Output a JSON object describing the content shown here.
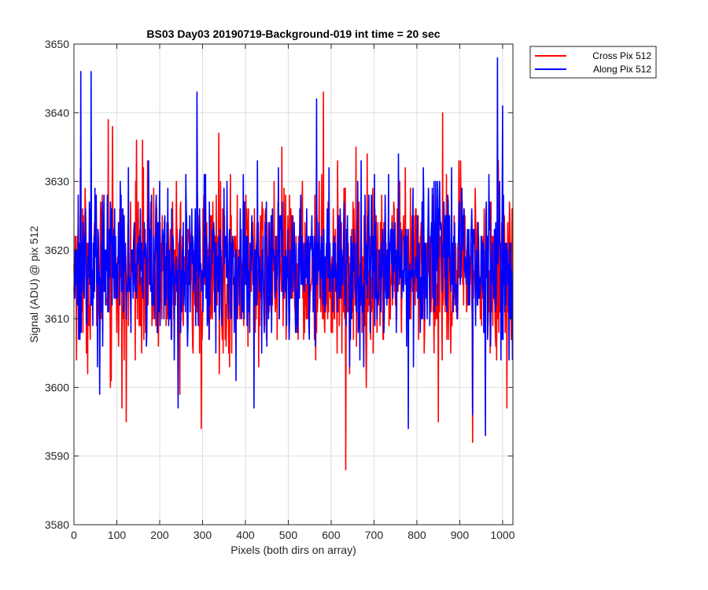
{
  "chart_data": {
    "type": "line",
    "title": "BS03 Day03 20190719-Background-019 int time = 20 sec",
    "xlabel": "Pixels (both dirs on array)",
    "ylabel": "Signal (ADU) @ pix 512",
    "xlim": [
      0,
      1024
    ],
    "ylim": [
      3580,
      3650
    ],
    "xticks": [
      0,
      100,
      200,
      300,
      400,
      500,
      600,
      700,
      800,
      900,
      1000
    ],
    "yticks": [
      3580,
      3590,
      3600,
      3610,
      3620,
      3630,
      3640,
      3650
    ],
    "grid": true,
    "legend_position": "outside-top-right",
    "series": [
      {
        "name": "Cross Pix 512",
        "color": "#ff0000",
        "mean": 3617,
        "noise_std": 6,
        "points": 1024,
        "notable_points": [
          [
            4,
            3622
          ],
          [
            15,
            3632
          ],
          [
            80,
            3639
          ],
          [
            90,
            3638
          ],
          [
            112,
            3597
          ],
          [
            122,
            3595
          ],
          [
            146,
            3636
          ],
          [
            160,
            3636
          ],
          [
            297,
            3594
          ],
          [
            338,
            3637
          ],
          [
            582,
            3643
          ],
          [
            634,
            3588
          ],
          [
            850,
            3595
          ],
          [
            860,
            3640
          ],
          [
            930,
            3592
          ],
          [
            990,
            3633
          ],
          [
            1010,
            3597
          ]
        ]
      },
      {
        "name": "Along Pix 512",
        "color": "#0000ff",
        "mean": 3618,
        "noise_std": 5.5,
        "points": 1024,
        "notable_points": [
          [
            16,
            3646
          ],
          [
            40,
            3646
          ],
          [
            60,
            3599
          ],
          [
            243,
            3597
          ],
          [
            287,
            3643
          ],
          [
            420,
            3597
          ],
          [
            566,
            3642
          ],
          [
            780,
            3594
          ],
          [
            930,
            3596
          ],
          [
            960,
            3593
          ],
          [
            988,
            3648
          ],
          [
            1000,
            3641
          ],
          [
            1020,
            3610
          ]
        ]
      }
    ]
  }
}
